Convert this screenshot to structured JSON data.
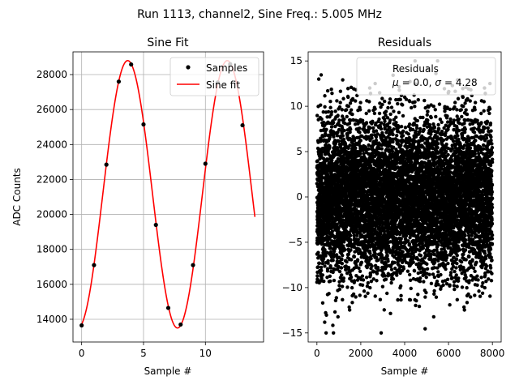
{
  "suptitle": "Run 1113, channel2, Sine Freq.: 5.005 MHz",
  "chart_data": [
    {
      "type": "line",
      "title": "Sine Fit",
      "xlabel": "Sample #",
      "ylabel": "ADC Counts",
      "xlim": [
        -0.7,
        14.7
      ],
      "ylim": [
        12700,
        29300
      ],
      "xticks": [
        0,
        5,
        10
      ],
      "xtick_labels": [
        "0",
        "5",
        "10"
      ],
      "yticks": [
        14000,
        16000,
        18000,
        20000,
        22000,
        24000,
        26000,
        28000
      ],
      "ytick_labels": [
        "14000",
        "16000",
        "18000",
        "20000",
        "22000",
        "24000",
        "26000",
        "28000"
      ],
      "grid": true,
      "legend_position": "upper right",
      "samples": {
        "name": "Samples",
        "color": "#000000",
        "marker": "dot",
        "x": [
          0,
          1,
          2,
          3,
          4,
          5,
          6,
          7,
          8,
          9,
          10,
          11,
          12,
          13
        ],
        "y": [
          13650,
          17100,
          22850,
          27600,
          28580,
          25150,
          19400,
          14650,
          13700,
          17100,
          22900,
          27550,
          28600,
          25100
        ]
      },
      "fit": {
        "name": "Sine fit",
        "color": "#ff0000",
        "offset": 21150,
        "amplitude": 7650,
        "period": 8.05,
        "peak_x": 3.72,
        "x_range": [
          0,
          14
        ]
      }
    },
    {
      "type": "scatter",
      "title": "Residuals",
      "xlabel": "Sample #",
      "ylabel": "",
      "xlim": [
        -400,
        8400
      ],
      "ylim": [
        -16.0,
        16.0
      ],
      "xticks": [
        0,
        2000,
        4000,
        6000,
        8000
      ],
      "xtick_labels": [
        "0",
        "2000",
        "4000",
        "6000",
        "8000"
      ],
      "yticks": [
        -15,
        -10,
        -5,
        0,
        5,
        10,
        15
      ],
      "ytick_labels": [
        "−15",
        "−10",
        "−5",
        "0",
        "5",
        "10",
        "15"
      ],
      "grid": false,
      "legend_position": "upper right",
      "series": {
        "name": "Residuals",
        "color": "#000000",
        "marker": "dot",
        "n_points": 8000,
        "mean": 0.0,
        "std": 4.28
      },
      "stats_text": {
        "mu_label": "μ",
        "mu_value": "= 0.0,",
        "sigma_label": "σ",
        "sigma_value": "= 4.28"
      }
    }
  ]
}
